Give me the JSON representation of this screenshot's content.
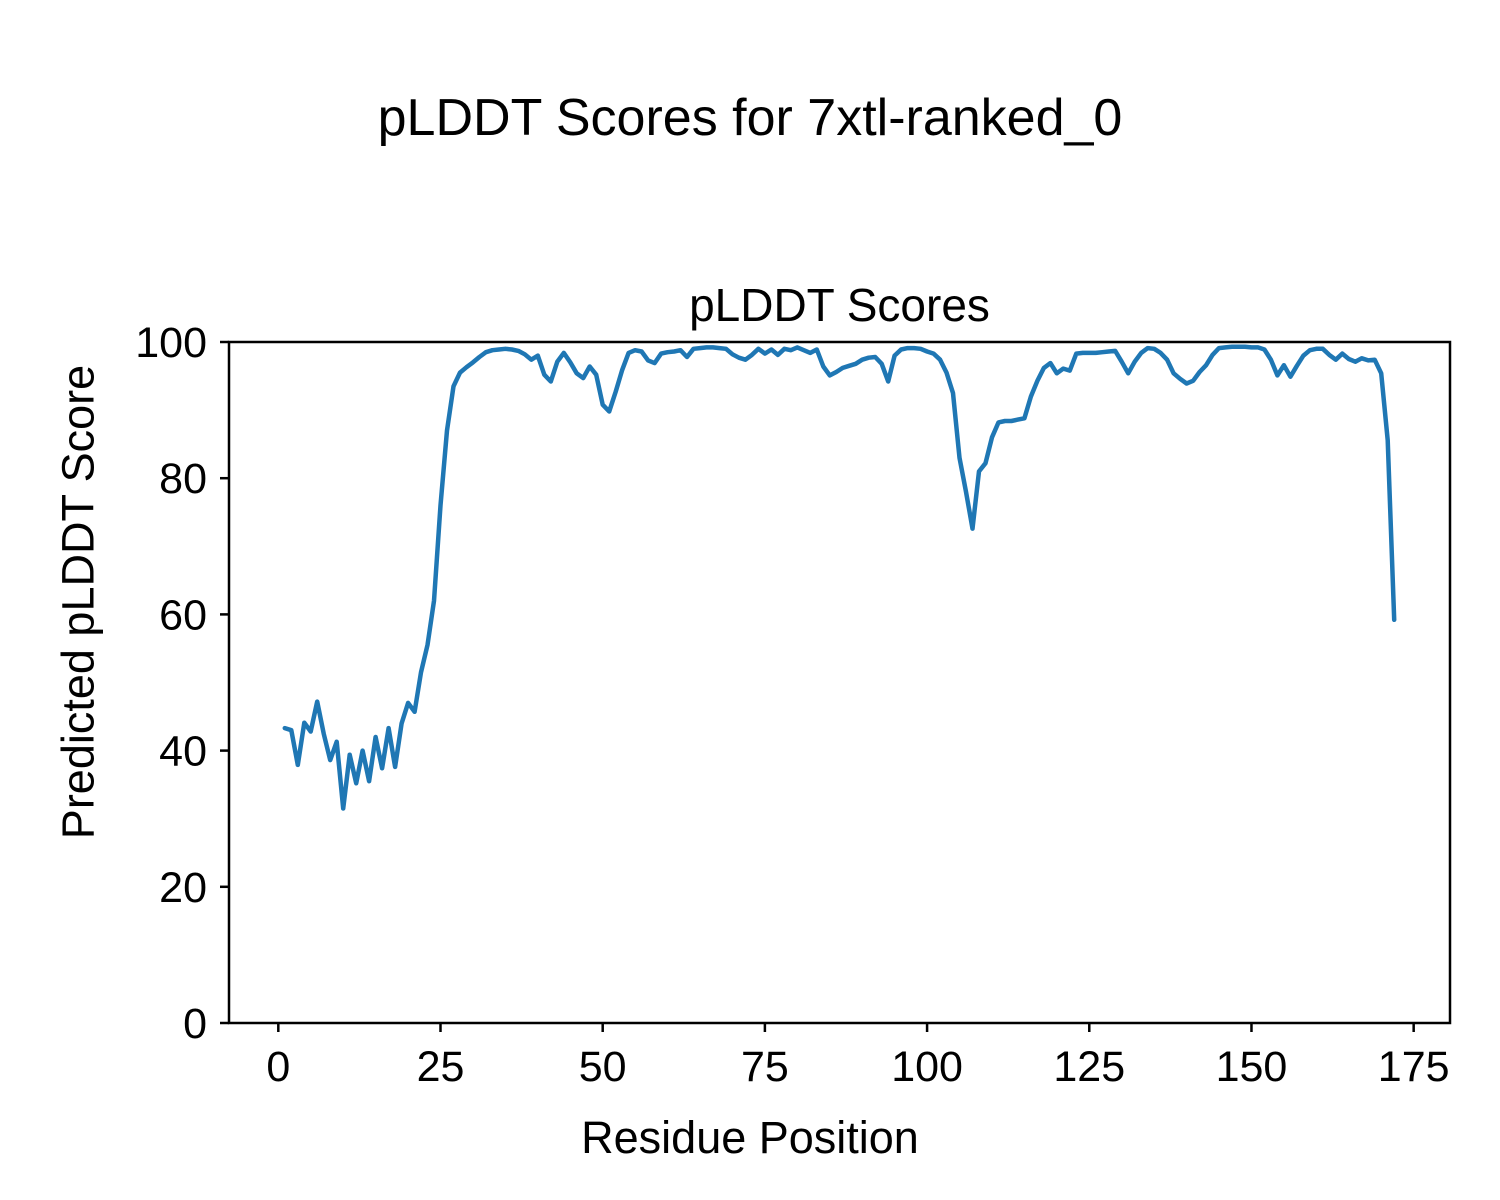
{
  "figure": {
    "suptitle": "pLDDT Scores for 7xtl-ranked_0",
    "xlabel": "Residue Position",
    "ylabel": "Predicted pLDDT Score"
  },
  "chart_data": {
    "type": "line",
    "title": "pLDDT Scores",
    "xlabel": "Residue Position",
    "ylabel": "Predicted pLDDT Score",
    "series_name": "pLDDT",
    "x_start": 1,
    "x_end": 172,
    "values": [
      43.3,
      43.0,
      37.9,
      44.1,
      42.8,
      47.2,
      42.5,
      38.6,
      41.3,
      31.5,
      39.4,
      35.2,
      40.0,
      35.5,
      42.0,
      37.4,
      43.3,
      37.6,
      44.0,
      47.0,
      45.7,
      51.5,
      55.5,
      62.0,
      76.0,
      87.0,
      93.5,
      95.5,
      96.3,
      97.0,
      97.8,
      98.5,
      98.8,
      98.9,
      99.0,
      98.9,
      98.7,
      98.2,
      97.4,
      98.0,
      95.2,
      94.2,
      97.1,
      98.4,
      97.0,
      95.4,
      94.7,
      96.4,
      95.2,
      90.8,
      89.8,
      92.7,
      95.9,
      98.4,
      98.8,
      98.6,
      97.3,
      96.9,
      98.3,
      98.5,
      98.6,
      98.8,
      97.8,
      99.0,
      99.1,
      99.2,
      99.2,
      99.1,
      99.0,
      98.2,
      97.7,
      97.4,
      98.1,
      99.0,
      98.3,
      98.9,
      98.1,
      99.0,
      98.8,
      99.2,
      98.8,
      98.4,
      98.9,
      96.4,
      95.1,
      95.6,
      96.2,
      96.5,
      96.8,
      97.4,
      97.7,
      97.8,
      96.8,
      94.2,
      98.0,
      98.9,
      99.1,
      99.1,
      99.0,
      98.6,
      98.3,
      97.4,
      95.5,
      92.5,
      83.0,
      78.0,
      72.6,
      81.0,
      82.2,
      86.0,
      88.2,
      88.4,
      88.4,
      88.6,
      88.8,
      92.0,
      94.3,
      96.2,
      96.9,
      95.4,
      96.1,
      95.8,
      98.3,
      98.4,
      98.4,
      98.4,
      98.5,
      98.6,
      98.7,
      97.1,
      95.4,
      97.1,
      98.4,
      99.1,
      99.0,
      98.4,
      97.4,
      95.4,
      94.6,
      93.9,
      94.3,
      95.6,
      96.6,
      98.1,
      99.1,
      99.2,
      99.3,
      99.3,
      99.3,
      99.2,
      99.2,
      98.9,
      97.4,
      95.1,
      96.6,
      94.9,
      96.5,
      98.0,
      98.8,
      99.0,
      99.0,
      98.1,
      97.4,
      98.3,
      97.5,
      97.1,
      97.6,
      97.3,
      97.4,
      95.4,
      85.6,
      59.2
    ],
    "xlim": [
      -7.6,
      180.6
    ],
    "ylim": [
      0,
      100
    ],
    "xticks": [
      0,
      25,
      50,
      75,
      100,
      125,
      150,
      175
    ],
    "yticks": [
      0,
      20,
      40,
      60,
      80,
      100
    ],
    "line_color": "#1f77b4",
    "axis_color": "#000000",
    "grid": false,
    "legend": null
  }
}
